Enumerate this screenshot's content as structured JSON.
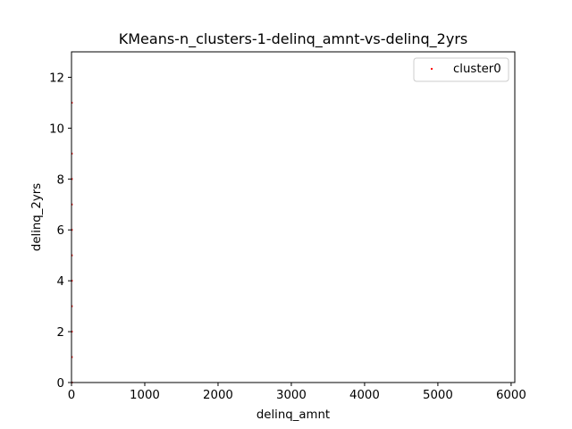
{
  "chart_data": {
    "type": "scatter",
    "title": "KMeans-n_clusters-1-delinq_amnt-vs-delinq_2yrs",
    "xlabel": "delinq_amnt",
    "ylabel": "delinq_2yrs",
    "xlim": [
      0,
      6050
    ],
    "ylim": [
      0,
      13
    ],
    "xticks": [
      0,
      1000,
      2000,
      3000,
      4000,
      5000,
      6000
    ],
    "yticks": [
      0,
      2,
      4,
      6,
      8,
      10,
      12
    ],
    "grid": false,
    "legend_position": "top-right",
    "series": [
      {
        "name": "cluster0",
        "color": "#ff0000",
        "points": [
          {
            "x": 0,
            "y": 0
          },
          {
            "x": 0,
            "y": 1
          },
          {
            "x": 0,
            "y": 2
          },
          {
            "x": 0,
            "y": 3
          },
          {
            "x": 0,
            "y": 4
          },
          {
            "x": 0,
            "y": 5
          },
          {
            "x": 0,
            "y": 6
          },
          {
            "x": 0,
            "y": 7
          },
          {
            "x": 0,
            "y": 8
          },
          {
            "x": 0,
            "y": 9
          },
          {
            "x": 0,
            "y": 11
          }
        ]
      }
    ]
  }
}
